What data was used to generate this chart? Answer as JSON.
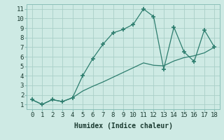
{
  "xlabel": "Humidex (Indice chaleur)",
  "line1_x": [
    0,
    1,
    2,
    3,
    4,
    5,
    6,
    7,
    8,
    9,
    10,
    11,
    12,
    13,
    14,
    15,
    16,
    17,
    18
  ],
  "line1_y": [
    1.5,
    1.0,
    1.5,
    1.3,
    1.7,
    4.0,
    5.8,
    7.3,
    8.5,
    8.85,
    9.4,
    11.0,
    10.2,
    4.7,
    9.1,
    6.5,
    5.5,
    8.8,
    7.0
  ],
  "line2_x": [
    0,
    1,
    2,
    3,
    4,
    5,
    6,
    7,
    8,
    9,
    10,
    11,
    12,
    13,
    14,
    15,
    16,
    17,
    18
  ],
  "line2_y": [
    1.5,
    1.0,
    1.5,
    1.3,
    1.7,
    2.4,
    2.9,
    3.35,
    3.85,
    4.35,
    4.85,
    5.35,
    5.1,
    5.05,
    5.55,
    5.9,
    6.1,
    6.4,
    7.0
  ],
  "line_color": "#2d7d6e",
  "bg_color": "#ceeae4",
  "grid_color": "#aacfc8",
  "xlim": [
    -0.5,
    18.5
  ],
  "ylim": [
    0.5,
    11.5
  ],
  "xticks": [
    0,
    1,
    2,
    3,
    4,
    5,
    6,
    7,
    8,
    9,
    10,
    11,
    12,
    13,
    14,
    15,
    16,
    17,
    18
  ],
  "yticks": [
    1,
    2,
    3,
    4,
    5,
    6,
    7,
    8,
    9,
    10,
    11
  ],
  "xlabel_fontsize": 7,
  "tick_fontsize": 6.5
}
